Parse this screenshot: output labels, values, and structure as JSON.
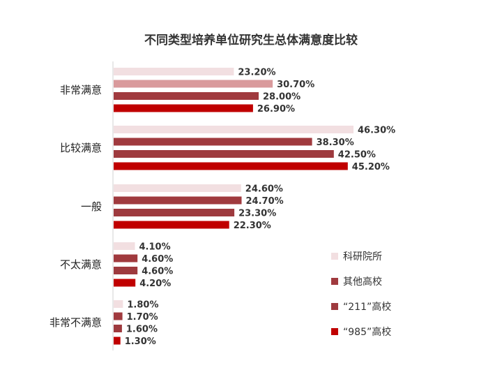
{
  "chart_data": {
    "type": "bar",
    "orientation": "horizontal",
    "title": "不同类型培养单位研究生总体满意度比较",
    "categories": [
      "非常满意",
      "比较满意",
      "一般",
      "不太满意",
      "非常不满意"
    ],
    "series": [
      {
        "name": "科研院所",
        "color": "#f2dfe1",
        "values": [
          23.2,
          46.3,
          24.6,
          4.1,
          1.8
        ],
        "labels": [
          "23.20%",
          "46.30%",
          "24.60%",
          "4.10%",
          "1.80%"
        ]
      },
      {
        "name": "其他高校",
        "color": "#a03a3e",
        "values": [
          30.7,
          38.3,
          24.7,
          4.6,
          1.7
        ],
        "labels": [
          "30.70%",
          "38.30%",
          "24.70%",
          "4.60%",
          "1.70%"
        ]
      },
      {
        "name": "“211”高校",
        "color": "#9e3a3e",
        "values": [
          28.0,
          42.5,
          23.3,
          4.6,
          1.6
        ],
        "labels": [
          "28.00%",
          "42.50%",
          "23.30%",
          "4.60%",
          "1.60%"
        ]
      },
      {
        "name": "“985”高校",
        "color": "#c00000",
        "values": [
          26.9,
          45.2,
          22.3,
          4.2,
          1.3
        ],
        "labels": [
          "26.90%",
          "45.20%",
          "22.30%",
          "4.20%",
          "1.30%"
        ]
      }
    ],
    "bar_colors_by_category": {
      "非常满意": [
        "#f2dfe1",
        "#d99a9c",
        "#a03a3e",
        "#c00000"
      ]
    },
    "xlim": [
      0,
      50
    ],
    "grid": false,
    "legend_position": "right"
  }
}
